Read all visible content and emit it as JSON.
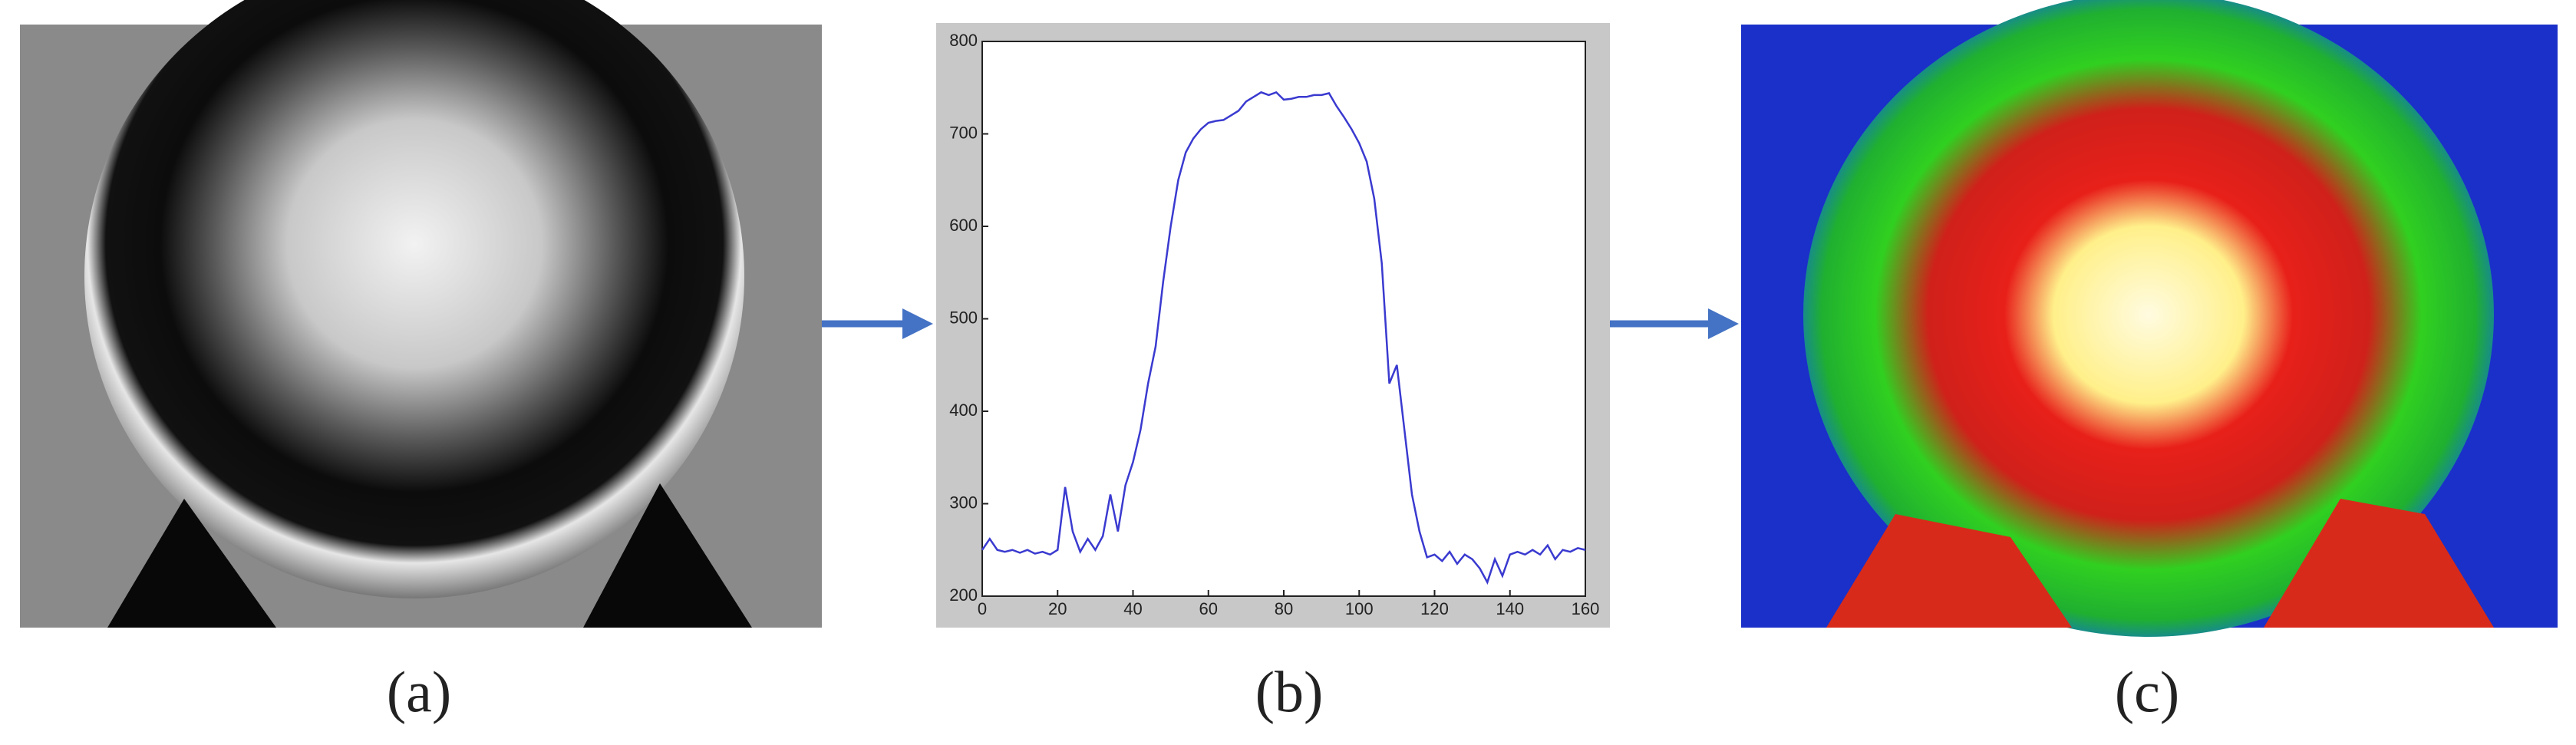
{
  "panels": [
    {
      "label": "(a)"
    },
    {
      "label": "(b)"
    },
    {
      "label": "(c)"
    }
  ],
  "chart_data": {
    "type": "line",
    "x": [
      0,
      2,
      4,
      6,
      8,
      10,
      12,
      14,
      16,
      18,
      20,
      22,
      24,
      26,
      28,
      30,
      32,
      34,
      36,
      38,
      40,
      42,
      44,
      46,
      48,
      50,
      52,
      54,
      56,
      58,
      60,
      62,
      64,
      66,
      68,
      70,
      72,
      74,
      76,
      78,
      80,
      82,
      84,
      86,
      88,
      90,
      92,
      94,
      96,
      98,
      100,
      102,
      104,
      106,
      108,
      110,
      112,
      114,
      116,
      118,
      120,
      122,
      124,
      126,
      128,
      130,
      132,
      134,
      136,
      138,
      140,
      142,
      144,
      146,
      148,
      150,
      152,
      154,
      156,
      158,
      160
    ],
    "series": [
      {
        "color": "#3a3ad0",
        "values": [
          250,
          262,
          250,
          248,
          250,
          247,
          250,
          246,
          248,
          245,
          250,
          318,
          270,
          248,
          262,
          250,
          265,
          310,
          270,
          320,
          345,
          380,
          430,
          470,
          540,
          600,
          650,
          680,
          695,
          705,
          712,
          714,
          715,
          720,
          725,
          735,
          740,
          745,
          742,
          745,
          737,
          738,
          740,
          740,
          742,
          742,
          744,
          730,
          718,
          705,
          690,
          670,
          630,
          560,
          430,
          450,
          380,
          310,
          270,
          242,
          245,
          238,
          248,
          235,
          245,
          240,
          230,
          215,
          240,
          222,
          245,
          248,
          245,
          250,
          245,
          255,
          240,
          250,
          248,
          252,
          250
        ]
      }
    ],
    "xlim": [
      0,
      160
    ],
    "ylim": [
      200,
      800
    ],
    "xticks": [
      0,
      20,
      40,
      60,
      80,
      100,
      120,
      140,
      160
    ],
    "yticks": [
      200,
      300,
      400,
      500,
      600,
      700,
      800
    ]
  }
}
